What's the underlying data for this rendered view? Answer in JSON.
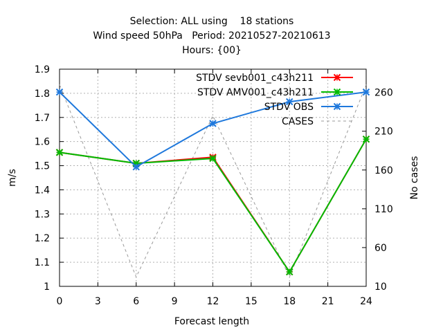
{
  "chart_data": {
    "type": "line",
    "title_lines": [
      "Selection: ALL using    18 stations",
      "Wind speed 50hPa   Period: 20210527-20210613",
      "Hours: {00}"
    ],
    "xlabel": "Forecast length",
    "ylabel": "m/s",
    "y2label": "No cases",
    "xlim": [
      0,
      24
    ],
    "ylim": [
      1,
      1.9
    ],
    "y2lim": [
      10,
      290
    ],
    "xticks": [
      "0",
      "3",
      "6",
      "9",
      "12",
      "15",
      "18",
      "21",
      "24"
    ],
    "yticks": [
      "1",
      "1.1",
      "1.2",
      "1.3",
      "1.4",
      "1.5",
      "1.6",
      "1.7",
      "1.8",
      "1.9"
    ],
    "y2ticks": [
      "10",
      "60",
      "110",
      "160",
      "210",
      "260"
    ],
    "grid": true,
    "legend_position": "top-right",
    "x": [
      0,
      6,
      12,
      18,
      24
    ],
    "series": [
      {
        "name": "STDV sevb001_c43h211",
        "axis": "left",
        "color": "#ff0000",
        "marker": "x",
        "values": [
          1.555,
          1.51,
          1.535,
          1.06,
          1.61
        ]
      },
      {
        "name": "STDV AMV001_c43h211",
        "axis": "left",
        "color": "#00bb00",
        "marker": "x",
        "values": [
          1.555,
          1.51,
          1.53,
          1.06,
          1.61
        ]
      },
      {
        "name": "STDV OBS",
        "axis": "left",
        "color": "#1e78dc",
        "marker": "x",
        "values": [
          1.805,
          1.495,
          1.675,
          1.765,
          1.805
        ]
      },
      {
        "name": "CASES",
        "axis": "right",
        "color": "#999999",
        "marker": "none",
        "dashed": true,
        "values": [
          270,
          22,
          230,
          22,
          270
        ]
      }
    ]
  }
}
